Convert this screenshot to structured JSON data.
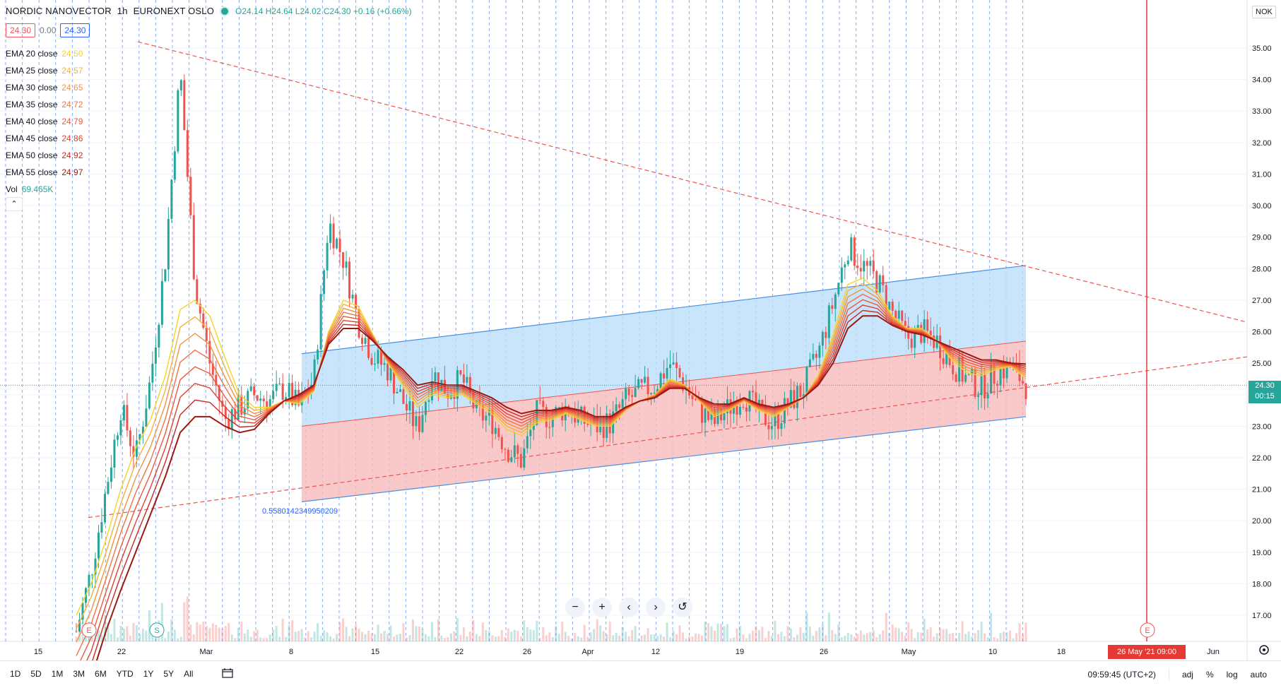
{
  "header": {
    "symbol": "NORDIC NANOVECTOR",
    "interval": "1h",
    "exchange": "EURONEXT OSLO",
    "open": "O24.14",
    "high": "H24.64",
    "low": "L24.02",
    "close": "C24.30",
    "change": "+0.16 (+0.66%)"
  },
  "price_boxes": {
    "bid": "24.30",
    "spread": "0.00",
    "ask": "24.30"
  },
  "legend": [
    {
      "label": "EMA 20 close",
      "value": "24.50",
      "color": "#f5d328"
    },
    {
      "label": "EMA 25 close",
      "value": "24.57",
      "color": "#f4b23b"
    },
    {
      "label": "EMA 30 close",
      "value": "24.65",
      "color": "#f39140"
    },
    {
      "label": "EMA 35 close",
      "value": "24.72",
      "color": "#f07344"
    },
    {
      "label": "EMA 40 close",
      "value": "24.79",
      "color": "#ea5a3c"
    },
    {
      "label": "EMA 45 close",
      "value": "24.86",
      "color": "#dd4230"
    },
    {
      "label": "EMA 50 close",
      "value": "24.92",
      "color": "#c72a22"
    },
    {
      "label": "EMA 55 close",
      "value": "24.97",
      "color": "#9a1a12"
    }
  ],
  "volume": {
    "label": "Vol",
    "value": "69.465K"
  },
  "currency": "NOK",
  "last_price": {
    "value": "24.30",
    "countdown": "00:15"
  },
  "event_marker": "26 May '21  09:00",
  "fib_annotation": "0.5580142349950209",
  "markers": [
    "E",
    "S",
    "E"
  ],
  "range_buttons": [
    "1D",
    "5D",
    "1M",
    "3M",
    "6M",
    "YTD",
    "1Y",
    "5Y",
    "All"
  ],
  "bottom_right": {
    "clock": "09:59:45 (UTC+2)",
    "adj": "adj",
    "percent": "%",
    "log": "log",
    "auto": "auto"
  },
  "chart_data": {
    "type": "candlestick",
    "x_ticks": [
      "15",
      "22",
      "Mar",
      "8",
      "15",
      "22",
      "26",
      "Apr",
      "12",
      "19",
      "26",
      "May",
      "10",
      "18",
      "Jun"
    ],
    "y_ticks": [
      "17.00",
      "18.00",
      "19.00",
      "20.00",
      "21.00",
      "22.00",
      "23.00",
      "24.00",
      "25.00",
      "26.00",
      "27.00",
      "28.00",
      "29.00",
      "30.00",
      "31.00",
      "32.00",
      "33.00",
      "34.00",
      "35.00"
    ],
    "ylim": [
      16.4,
      35.7
    ],
    "close_path": [
      16.5,
      18.4,
      21.0,
      23.6,
      22.0,
      24.5,
      28.3,
      34.3,
      27.5,
      25.0,
      23.2,
      23.6,
      24.0,
      23.8,
      24.2,
      23.6,
      24.5,
      29.5,
      28.3,
      26.3,
      25.2,
      24.8,
      23.8,
      22.9,
      24.7,
      24.1,
      24.5,
      23.4,
      23.2,
      22.3,
      21.9,
      23.4,
      23.3,
      23.6,
      23.2,
      23.0,
      23.1,
      23.8,
      24.1,
      24.3,
      25.0,
      24.3,
      23.5,
      23.1,
      23.6,
      24.0,
      23.4,
      23.1,
      23.7,
      24.2,
      25.3,
      26.9,
      28.7,
      28.1,
      27.6,
      26.6,
      25.8,
      26.0,
      25.7,
      25.0,
      24.5,
      24.2,
      24.7,
      24.9,
      24.3
    ],
    "ema_bundle": {
      "EMA 20": [
        17.0,
        18.0,
        19.4,
        21.0,
        22.3,
        23.2,
        24.6,
        26.7,
        27.0,
        26.5,
        25.2,
        24.0,
        23.6,
        23.6,
        23.8,
        23.7,
        24.1,
        26.0,
        27.0,
        26.8,
        25.9,
        25.0,
        24.3,
        23.6,
        24.0,
        23.9,
        24.0,
        23.7,
        23.4,
        22.9,
        22.7,
        23.1,
        23.2,
        23.4,
        23.2,
        23.0,
        23.0,
        23.5,
        23.8,
        24.0,
        24.5,
        24.3,
        23.8,
        23.3,
        23.5,
        23.8,
        23.5,
        23.3,
        23.6,
        23.9,
        24.6,
        25.9,
        27.5,
        27.7,
        27.3,
        26.5,
        26.1,
        26.1,
        25.7,
        25.1,
        24.7,
        24.6,
        24.8,
        24.9,
        24.5
      ],
      "EMA 55": [
        14.0,
        15.0,
        16.5,
        17.8,
        19.0,
        20.2,
        21.4,
        22.8,
        23.3,
        23.3,
        23.0,
        22.8,
        22.9,
        23.4,
        23.8,
        24.0,
        24.3,
        25.6,
        26.1,
        26.1,
        25.7,
        25.2,
        24.8,
        24.3,
        24.4,
        24.3,
        24.3,
        24.1,
        23.9,
        23.6,
        23.4,
        23.5,
        23.5,
        23.6,
        23.5,
        23.3,
        23.3,
        23.6,
        23.8,
        23.9,
        24.2,
        24.2,
        23.9,
        23.7,
        23.7,
        23.9,
        23.7,
        23.6,
        23.7,
        23.9,
        24.3,
        25.0,
        26.1,
        26.5,
        26.5,
        26.2,
        26.0,
        25.9,
        25.7,
        25.5,
        25.3,
        25.1,
        25.1,
        25.0,
        24.97
      ]
    },
    "regression_channel": {
      "upper": [
        25.3,
        28.1
      ],
      "middle": [
        23.0,
        25.7
      ],
      "lower": [
        20.6,
        23.3
      ],
      "upper_fill": "#bbdefb",
      "lower_fill": "#f8bcbc"
    },
    "trend_lines": {
      "descending": [
        35.2,
        26.3
      ],
      "ascending": [
        20.1,
        25.2
      ],
      "color": "#ef5350"
    },
    "colors": {
      "up": "#26a69a",
      "down": "#ef5350",
      "grid": "#2962ff",
      "event_line": "#e53935"
    }
  }
}
